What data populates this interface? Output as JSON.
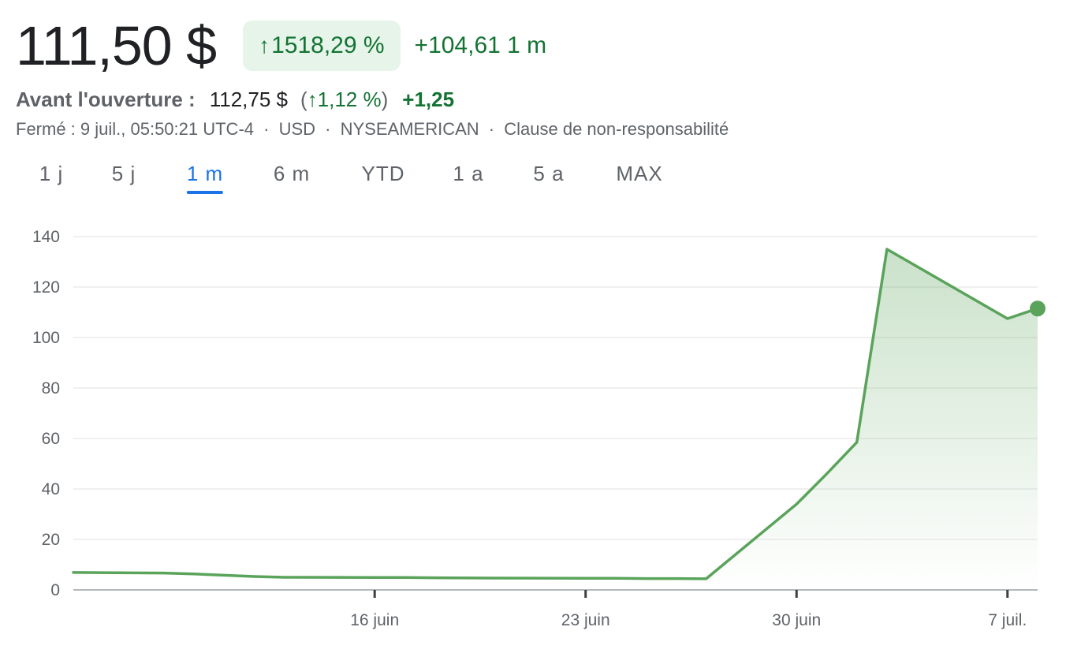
{
  "header": {
    "price": "111,50 $",
    "change_pct_arrow": "↑",
    "change_pct": "1518,29 %",
    "change_abs": "+104,61 1 m"
  },
  "premarket": {
    "label": "Avant l'ouverture :",
    "price": "112,75 $",
    "open_paren": "(",
    "arrow": "↑",
    "pct": "1,12 %",
    "close_paren": ")",
    "abs": "+1,25"
  },
  "meta": {
    "status": "Fermé : 9 juil., 05:50:21 UTC-4",
    "currency": "USD",
    "exchange": "NYSEAMERICAN",
    "disclaimer": "Clause de non-responsabilité",
    "separator": "·"
  },
  "tabs": [
    {
      "label": "1 j",
      "active": false
    },
    {
      "label": "5 j",
      "active": false
    },
    {
      "label": "1 m",
      "active": true
    },
    {
      "label": "6 m",
      "active": false
    },
    {
      "label": "YTD",
      "active": false
    },
    {
      "label": "1 a",
      "active": false
    },
    {
      "label": "5 a",
      "active": false
    },
    {
      "label": "MAX",
      "active": false
    }
  ],
  "colors": {
    "line": "#5aa35a",
    "positive": "#137333",
    "accent": "#1a73e8",
    "grid": "#ececec"
  },
  "chart_data": {
    "type": "area",
    "ylim": [
      0,
      140
    ],
    "yticks": [
      0,
      20,
      40,
      60,
      80,
      100,
      120,
      140
    ],
    "xlim": [
      "2025-06-06",
      "2025-07-08"
    ],
    "xticks": [
      {
        "label": "16 juin",
        "date": "2025-06-16"
      },
      {
        "label": "23 juin",
        "date": "2025-06-23"
      },
      {
        "label": "30 juin",
        "date": "2025-06-30"
      },
      {
        "label": "7 juil.",
        "date": "2025-07-07"
      }
    ],
    "grid": true,
    "x": [
      "2025-06-06",
      "2025-06-09",
      "2025-06-10",
      "2025-06-11",
      "2025-06-12",
      "2025-06-13",
      "2025-06-16",
      "2025-06-17",
      "2025-06-18",
      "2025-06-20",
      "2025-06-23",
      "2025-06-24",
      "2025-06-25",
      "2025-06-26",
      "2025-06-27",
      "2025-06-30",
      "2025-07-01",
      "2025-07-02",
      "2025-07-03",
      "2025-07-07",
      "2025-07-08"
    ],
    "values": [
      6.9,
      6.7,
      6.3,
      5.8,
      5.3,
      5.0,
      4.9,
      4.9,
      4.8,
      4.7,
      4.6,
      4.6,
      4.5,
      4.5,
      4.4,
      34,
      46,
      58.5,
      135,
      107.5,
      111.5
    ]
  }
}
